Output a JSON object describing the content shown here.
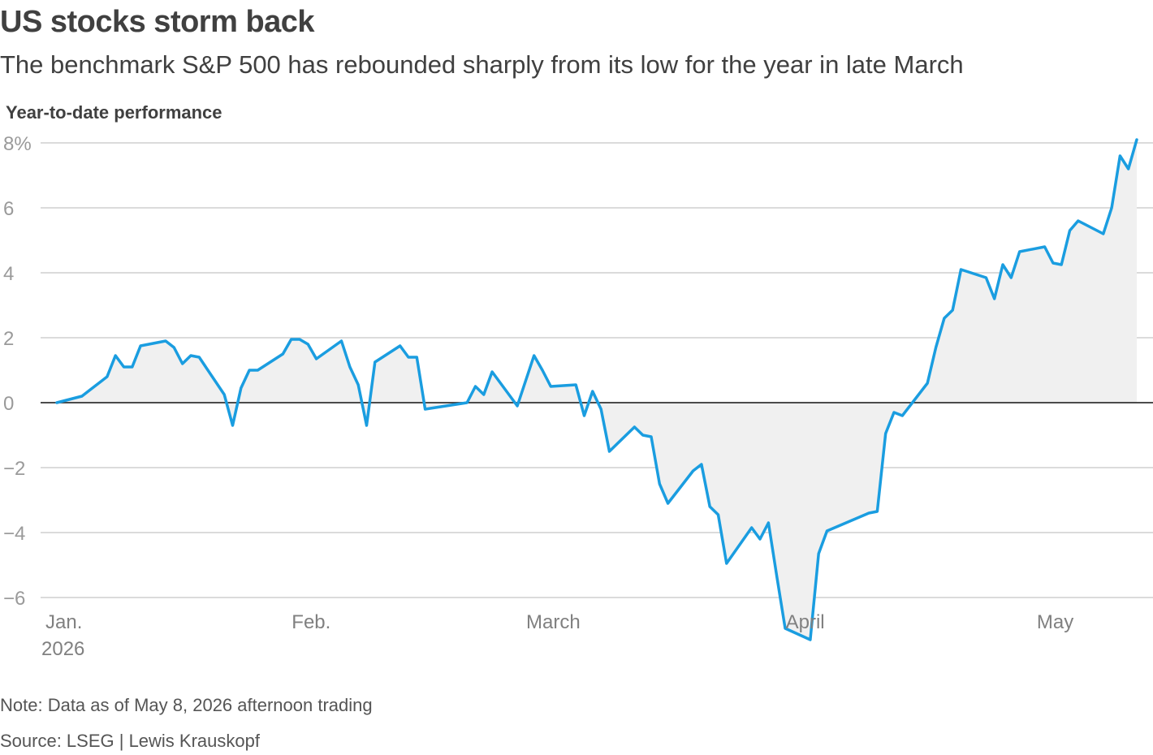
{
  "chart_data": {
    "type": "area",
    "title": "US stocks storm back",
    "subtitle": "The benchmark S&P 500 has rebounded sharply from its low for the year in late March",
    "ylabel": "Year-to-date performance",
    "ylim": [
      -6,
      8
    ],
    "yticks": [
      {
        "value": 8,
        "label": "8%"
      },
      {
        "value": 6,
        "label": "6"
      },
      {
        "value": 4,
        "label": "4"
      },
      {
        "value": 2,
        "label": "2"
      },
      {
        "value": 0,
        "label": "0"
      },
      {
        "value": -2,
        "label": "−2"
      },
      {
        "value": -4,
        "label": "−4"
      },
      {
        "value": -6,
        "label": "−6"
      }
    ],
    "xticks": [
      {
        "date": "2026-01-01",
        "label": "Jan.",
        "sublabel": "2026"
      },
      {
        "date": "2026-02-01",
        "label": "Feb.",
        "sublabel": ""
      },
      {
        "date": "2026-03-01",
        "label": "March",
        "sublabel": ""
      },
      {
        "date": "2026-04-01",
        "label": "April",
        "sublabel": ""
      },
      {
        "date": "2026-05-01",
        "label": "May",
        "sublabel": ""
      }
    ],
    "grid": true,
    "line_color": "#1a9de0",
    "fill_color": "#f0f0f0",
    "series": [
      {
        "points": [
          [
            "2026-01-02",
            0.0
          ],
          [
            "2026-01-05",
            0.2
          ],
          [
            "2026-01-06",
            0.4
          ],
          [
            "2026-01-07",
            0.6
          ],
          [
            "2026-01-08",
            0.8
          ],
          [
            "2026-01-09",
            1.45
          ],
          [
            "2026-01-10",
            1.1
          ],
          [
            "2026-01-11",
            1.1
          ],
          [
            "2026-01-12",
            1.75
          ],
          [
            "2026-01-15",
            1.9
          ],
          [
            "2026-01-16",
            1.7
          ],
          [
            "2026-01-17",
            1.2
          ],
          [
            "2026-01-18",
            1.45
          ],
          [
            "2026-01-19",
            1.4
          ],
          [
            "2026-01-22",
            0.25
          ],
          [
            "2026-01-23",
            -0.7
          ],
          [
            "2026-01-24",
            0.45
          ],
          [
            "2026-01-25",
            1.0
          ],
          [
            "2026-01-26",
            1.0
          ],
          [
            "2026-01-29",
            1.5
          ],
          [
            "2026-01-30",
            1.95
          ],
          [
            "2026-01-31",
            1.95
          ],
          [
            "2026-02-01",
            1.8
          ],
          [
            "2026-02-02",
            1.35
          ],
          [
            "2026-02-05",
            1.9
          ],
          [
            "2026-02-06",
            1.1
          ],
          [
            "2026-02-07",
            0.55
          ],
          [
            "2026-02-08",
            -0.7
          ],
          [
            "2026-02-09",
            1.25
          ],
          [
            "2026-02-12",
            1.75
          ],
          [
            "2026-02-13",
            1.4
          ],
          [
            "2026-02-14",
            1.4
          ],
          [
            "2026-02-15",
            -0.2
          ],
          [
            "2026-02-20",
            0.0
          ],
          [
            "2026-02-21",
            0.5
          ],
          [
            "2026-02-22",
            0.25
          ],
          [
            "2026-02-23",
            0.95
          ],
          [
            "2026-02-26",
            -0.1
          ],
          [
            "2026-02-28",
            1.45
          ],
          [
            "2026-03-01",
            1.0
          ],
          [
            "2026-03-02",
            0.5
          ],
          [
            "2026-03-05",
            0.55
          ],
          [
            "2026-03-06",
            -0.4
          ],
          [
            "2026-03-07",
            0.35
          ],
          [
            "2026-03-08",
            -0.2
          ],
          [
            "2026-03-09",
            -1.5
          ],
          [
            "2026-03-12",
            -0.75
          ],
          [
            "2026-03-13",
            -1.0
          ],
          [
            "2026-03-14",
            -1.05
          ],
          [
            "2026-03-15",
            -2.5
          ],
          [
            "2026-03-16",
            -3.1
          ],
          [
            "2026-03-19",
            -2.1
          ],
          [
            "2026-03-20",
            -1.9
          ],
          [
            "2026-03-21",
            -3.2
          ],
          [
            "2026-03-22",
            -3.45
          ],
          [
            "2026-03-23",
            -4.95
          ],
          [
            "2026-03-26",
            -3.85
          ],
          [
            "2026-03-27",
            -4.2
          ],
          [
            "2026-03-28",
            -3.7
          ],
          [
            "2026-03-29",
            -5.35
          ],
          [
            "2026-03-30",
            -6.95
          ],
          [
            "2026-04-02",
            -7.3
          ],
          [
            "2026-04-03",
            -4.65
          ],
          [
            "2026-04-04",
            -3.95
          ],
          [
            "2026-04-09",
            -3.4
          ],
          [
            "2026-04-10",
            -3.35
          ],
          [
            "2026-04-11",
            -0.95
          ],
          [
            "2026-04-12",
            -0.3
          ],
          [
            "2026-04-13",
            -0.4
          ],
          [
            "2026-04-16",
            0.6
          ],
          [
            "2026-04-17",
            1.7
          ],
          [
            "2026-04-18",
            2.6
          ],
          [
            "2026-04-19",
            2.85
          ],
          [
            "2026-04-20",
            4.1
          ],
          [
            "2026-04-23",
            3.85
          ],
          [
            "2026-04-24",
            3.2
          ],
          [
            "2026-04-25",
            4.25
          ],
          [
            "2026-04-26",
            3.85
          ],
          [
            "2026-04-27",
            4.65
          ],
          [
            "2026-04-30",
            4.8
          ],
          [
            "2026-05-01",
            4.3
          ],
          [
            "2026-05-02",
            4.25
          ],
          [
            "2026-05-03",
            5.3
          ],
          [
            "2026-05-04",
            5.6
          ],
          [
            "2026-05-07",
            5.2
          ],
          [
            "2026-05-08",
            6.0
          ],
          [
            "2026-05-09",
            7.6
          ],
          [
            "2026-05-10",
            7.2
          ],
          [
            "2026-05-11",
            8.1
          ]
        ]
      }
    ]
  },
  "footer": {
    "note": "Note: Data as of May 8, 2026 afternoon trading",
    "source": "Source: LSEG | Lewis Krauskopf"
  }
}
